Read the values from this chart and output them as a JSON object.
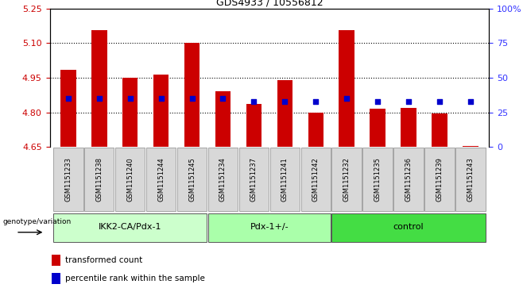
{
  "title": "GDS4933 / 10556812",
  "samples": [
    "GSM1151233",
    "GSM1151238",
    "GSM1151240",
    "GSM1151244",
    "GSM1151245",
    "GSM1151234",
    "GSM1151237",
    "GSM1151241",
    "GSM1151242",
    "GSM1151232",
    "GSM1151235",
    "GSM1151236",
    "GSM1151239",
    "GSM1151243"
  ],
  "bar_values": [
    4.985,
    5.155,
    4.95,
    4.965,
    5.1,
    4.89,
    4.835,
    4.94,
    4.8,
    5.155,
    4.815,
    4.82,
    4.795,
    4.655
  ],
  "blue_pct": [
    35,
    35,
    35,
    35,
    35,
    35,
    33,
    33,
    33,
    35,
    33,
    33,
    33,
    33
  ],
  "groups": [
    {
      "label": "IKK2-CA/Pdx-1",
      "start": 0,
      "end": 5,
      "color": "#ccffcc"
    },
    {
      "label": "Pdx-1+/-",
      "start": 5,
      "end": 9,
      "color": "#aaffaa"
    },
    {
      "label": "control",
      "start": 9,
      "end": 14,
      "color": "#44dd44"
    }
  ],
  "ylim_left": [
    4.65,
    5.25
  ],
  "ylim_right": [
    0,
    100
  ],
  "yticks_left": [
    4.65,
    4.8,
    4.95,
    5.1,
    5.25
  ],
  "yticks_right": [
    0,
    25,
    50,
    75,
    100
  ],
  "bar_color": "#cc0000",
  "blue_color": "#0000cc",
  "label_color_left": "#cc0000",
  "label_color_right": "#3333ff",
  "grid_yticks": [
    4.8,
    4.95,
    5.1
  ]
}
